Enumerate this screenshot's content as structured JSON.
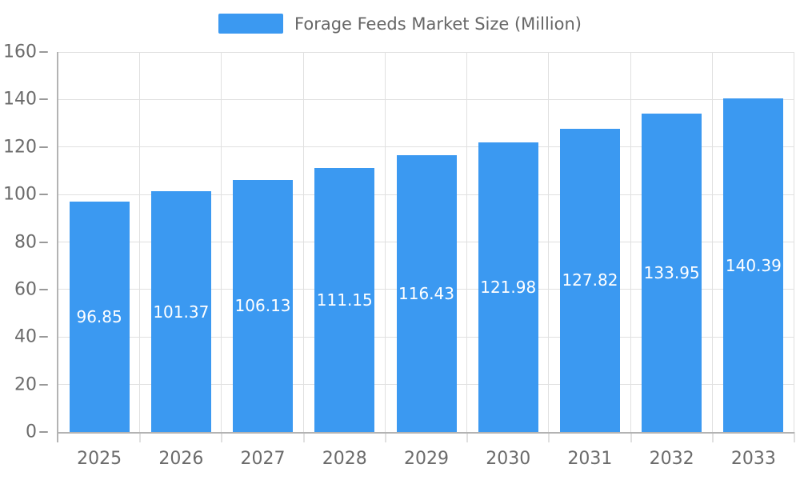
{
  "legend": {
    "label": "Forage Feeds Market Size (Million)"
  },
  "colors": {
    "bar": "#3b99f1",
    "axis_line": "#b3b3b3",
    "grid": "#e0e0e0",
    "tick": "#999999",
    "axis_text": "#6b6b6b",
    "legend_text": "#666666",
    "value_text": "#ffffff"
  },
  "chart_data": {
    "type": "bar",
    "title": "Forage Feeds Market Size (Million)",
    "series_name": "Forage Feeds Market Size (Million)",
    "categories": [
      "2025",
      "2026",
      "2027",
      "2028",
      "2029",
      "2030",
      "2031",
      "2032",
      "2033"
    ],
    "values": [
      96.85,
      101.37,
      106.13,
      111.15,
      116.43,
      121.98,
      127.82,
      133.95,
      140.39
    ],
    "xlabel": "",
    "ylabel": "",
    "ylim": [
      0,
      160
    ],
    "yticks": [
      0,
      20,
      40,
      60,
      80,
      100,
      120,
      140,
      160
    ],
    "grid": true,
    "legend_position": "top-center",
    "value_labels": "inside-middle",
    "value_label_color": "#ffffff",
    "bar_color": "#3b99f1"
  }
}
